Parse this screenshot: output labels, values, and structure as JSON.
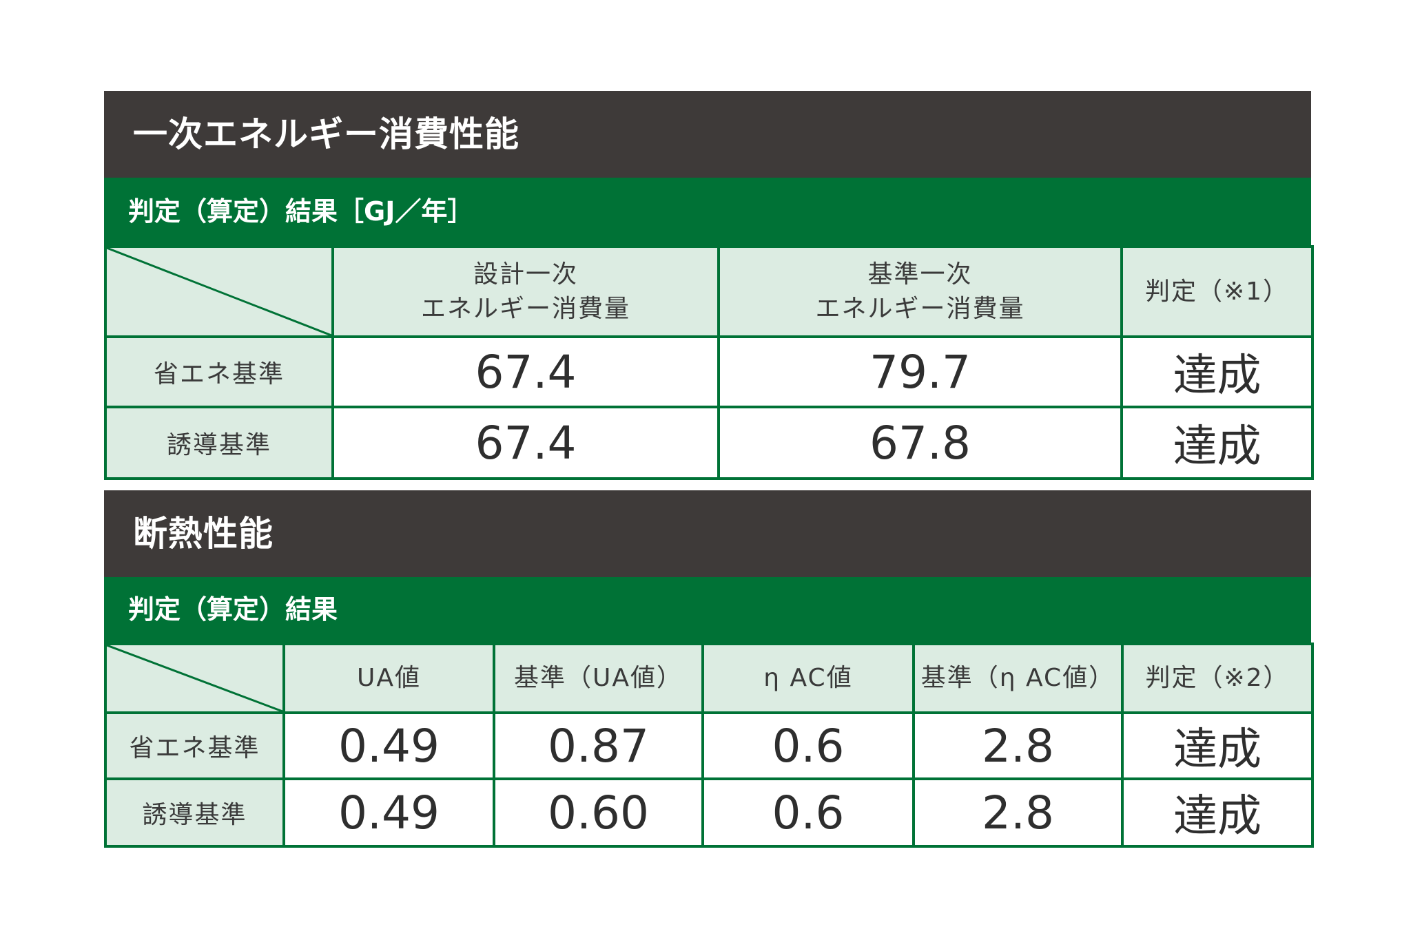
{
  "energy": {
    "title": "一次エネルギー消費性能",
    "subtitle": "判定（算定）結果［GJ／年］",
    "headers": {
      "design_line1": "設計一次",
      "design_line2": "エネルギー消費量",
      "standard_line1": "基準一次",
      "standard_line2": "エネルギー消費量",
      "judgement": "判定（※1）"
    },
    "rows": [
      {
        "label": "省エネ基準",
        "design": "67.4",
        "standard": "79.7",
        "result": "達成"
      },
      {
        "label": "誘導基準",
        "design": "67.4",
        "standard": "67.8",
        "result": "達成"
      }
    ]
  },
  "insulation": {
    "title": "断熱性能",
    "subtitle": "判定（算定）結果",
    "headers": {
      "ua": "UA値",
      "ua_standard": "基準（UA値）",
      "eta": "η AC値",
      "eta_standard": "基準（η AC値）",
      "judgement": "判定（※2）"
    },
    "rows": [
      {
        "label": "省エネ基準",
        "ua": "0.49",
        "ua_standard": "0.87",
        "eta": "0.6",
        "eta_standard": "2.8",
        "result": "達成"
      },
      {
        "label": "誘導基準",
        "ua": "0.49",
        "ua_standard": "0.60",
        "eta": "0.6",
        "eta_standard": "2.8",
        "result": "達成"
      }
    ]
  }
}
